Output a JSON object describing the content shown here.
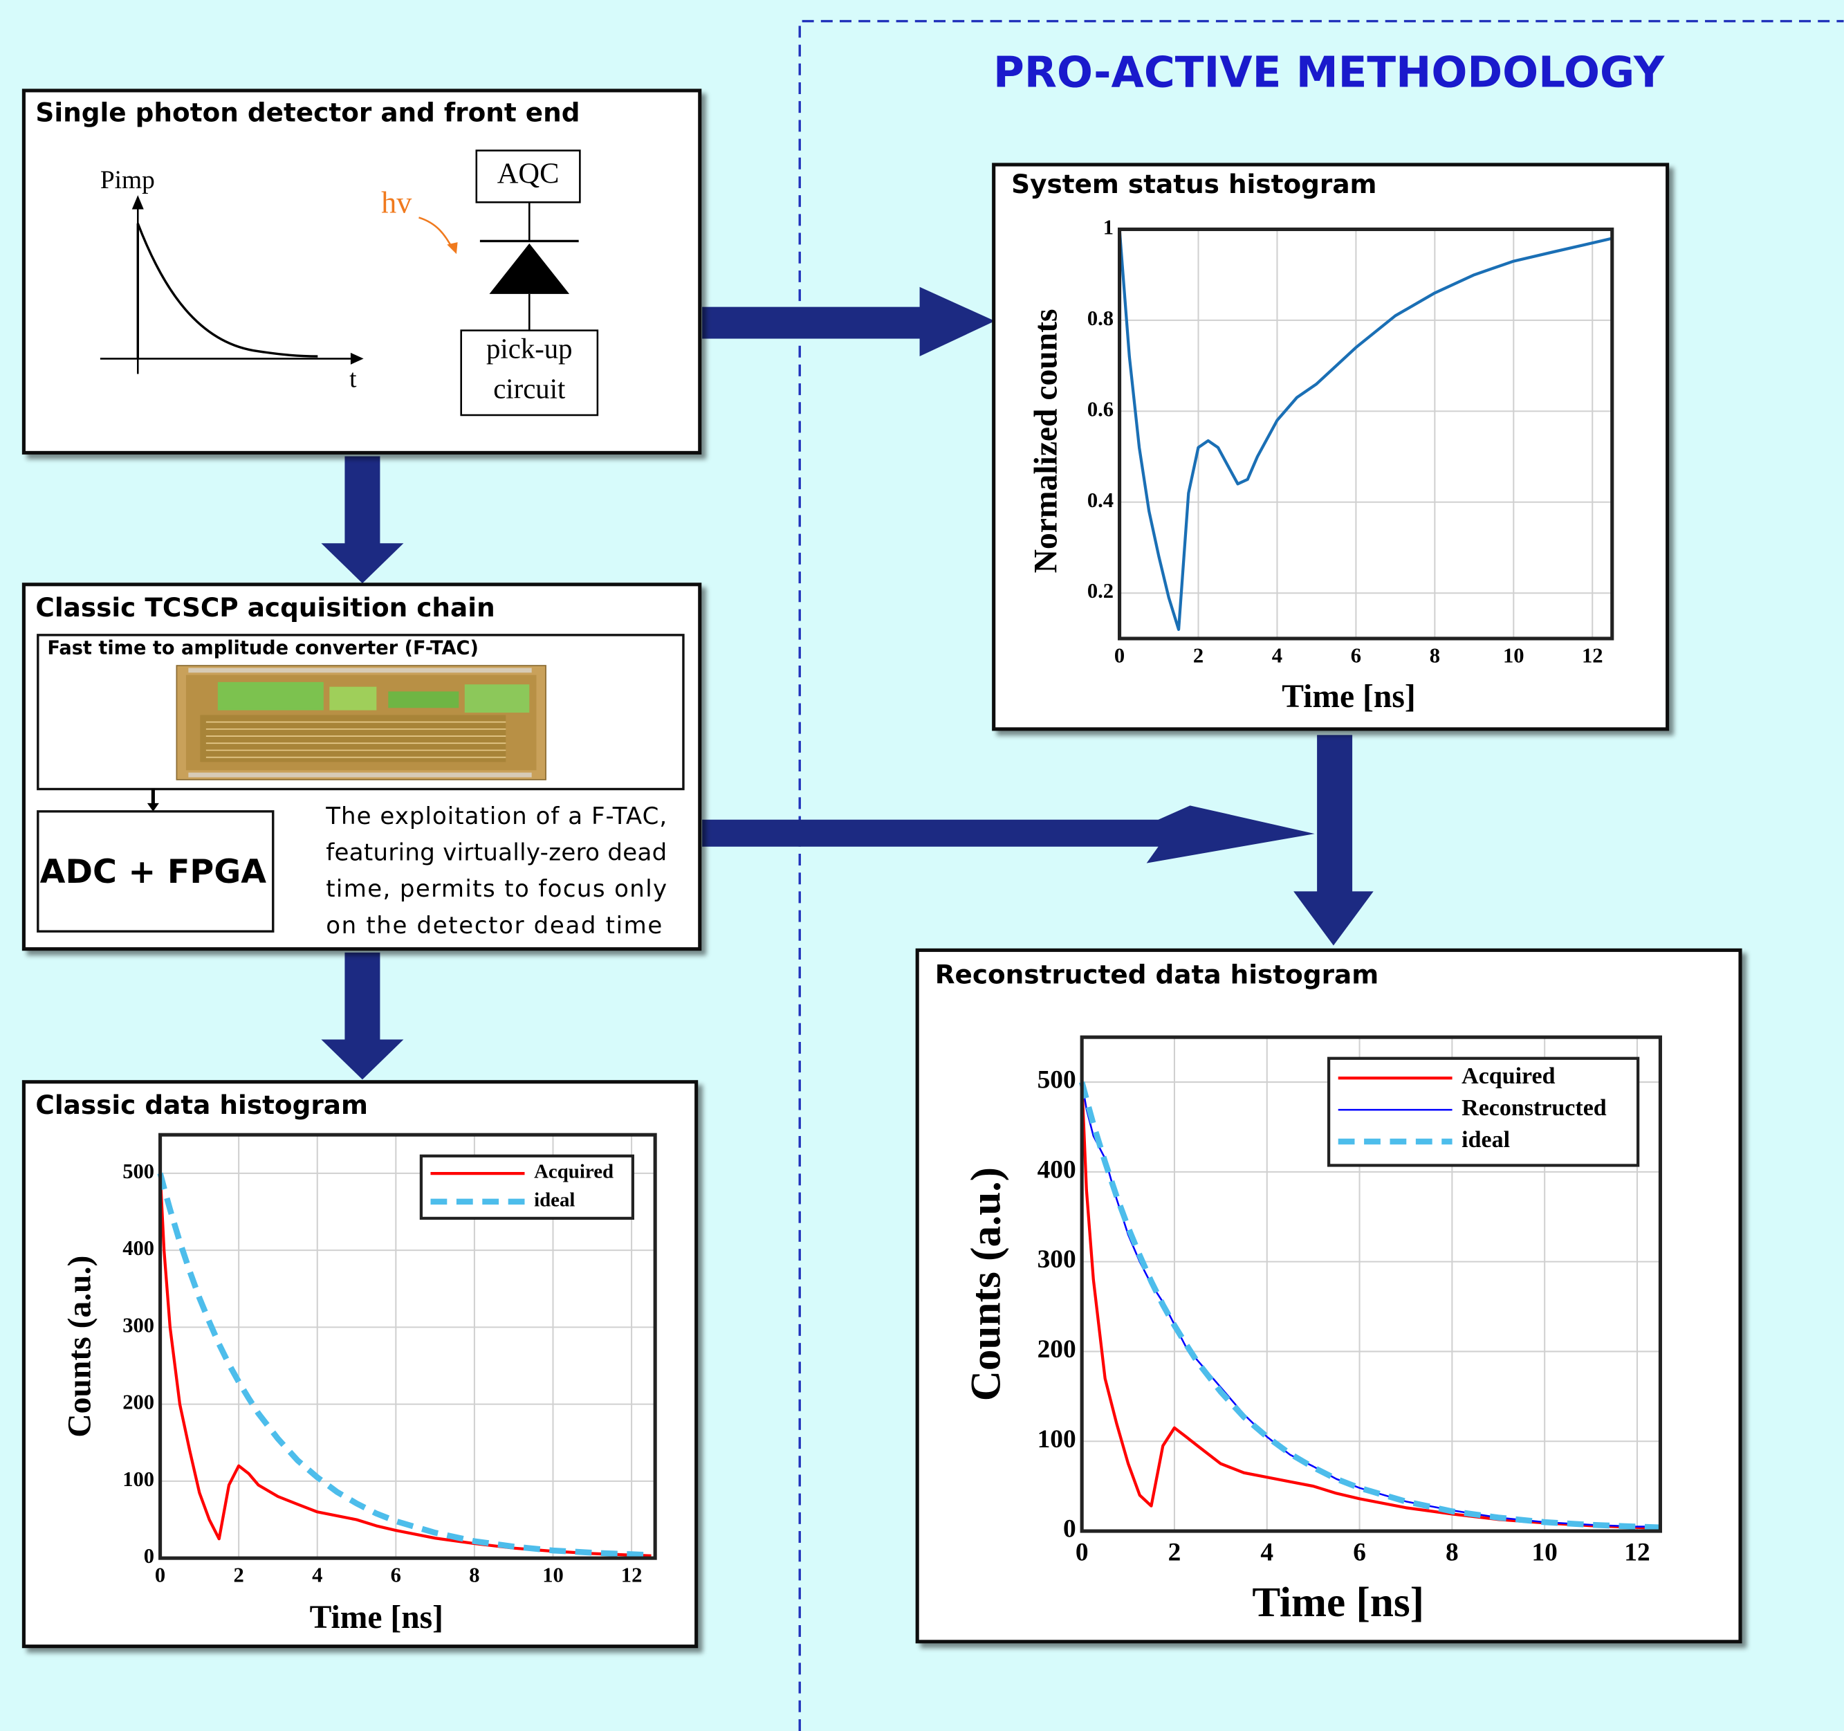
{
  "title": "PRO-ACTIVE METHODOLOGY",
  "detector": {
    "title": "Single photon detector and front end",
    "pulse_y_label": "Pimp",
    "pulse_x_label": "t",
    "photon_label": "hv",
    "quench_label": "AQC",
    "pickup_label": [
      "pick-up",
      "circuit"
    ]
  },
  "acquisition": {
    "title": "Classic TCSCP acquisition chain",
    "ftac_title": "Fast time to amplitude converter (F-TAC)",
    "adc_label": "ADC + FPGA",
    "description_lines": [
      "The exploitation of a F-TAC,",
      "featuring virtually-zero dead",
      "time, permits to focus only",
      "on the detector dead time"
    ]
  },
  "chart_data": [
    {
      "type": "line",
      "title": "Classic data histogram",
      "x_label": "Time [ns]",
      "y_label": "Counts (a.u.)",
      "x": [
        0,
        0.1,
        0.25,
        0.5,
        0.75,
        1,
        1.25,
        1.5,
        1.75,
        2,
        2.25,
        2.5,
        3,
        3.5,
        4,
        4.5,
        5,
        5.5,
        6,
        7,
        8,
        9,
        10,
        11,
        12,
        12.5
      ],
      "series": [
        {
          "name": "Acquired",
          "color": "#ff0000",
          "style": "solid",
          "values": [
            500,
            400,
            300,
            200,
            140,
            85,
            50,
            25,
            95,
            120,
            110,
            95,
            80,
            70,
            60,
            55,
            50,
            42,
            36,
            26,
            19,
            13,
            9,
            6,
            4,
            3
          ]
        },
        {
          "name": "ideal",
          "color": "#4dbdeb",
          "style": "dashed",
          "values": [
            500,
            481,
            453,
            411,
            373,
            338,
            307,
            278,
            252,
            229,
            208,
            188,
            155,
            127,
            105,
            86,
            71,
            58,
            48,
            33,
            22,
            15,
            10,
            7,
            5,
            4
          ]
        }
      ],
      "xlim": [
        0,
        12.6
      ],
      "ylim": [
        0,
        550
      ],
      "xticks": [
        0,
        2,
        4,
        6,
        8,
        10,
        12
      ],
      "yticks": [
        0,
        100,
        200,
        300,
        400,
        500
      ],
      "grid": true,
      "legend": "upper right"
    },
    {
      "type": "line",
      "title": "System status histogram",
      "x_label": "Time [ns]",
      "y_label": "Normalized counts",
      "x": [
        0,
        0.25,
        0.5,
        0.75,
        1,
        1.25,
        1.5,
        1.75,
        2,
        2.25,
        2.5,
        2.75,
        3,
        3.25,
        3.5,
        4,
        4.5,
        5,
        5.5,
        6,
        7,
        8,
        9,
        10,
        11,
        12,
        12.5
      ],
      "series": [
        {
          "color": "#1a6fb5",
          "style": "solid",
          "values": [
            1,
            0.72,
            0.52,
            0.38,
            0.28,
            0.19,
            0.12,
            0.42,
            0.52,
            0.535,
            0.52,
            0.48,
            0.44,
            0.45,
            0.5,
            0.58,
            0.63,
            0.66,
            0.7,
            0.74,
            0.81,
            0.86,
            0.9,
            0.93,
            0.95,
            0.97,
            0.98
          ]
        }
      ],
      "xlim": [
        0,
        12.5
      ],
      "ylim": [
        0.1,
        1
      ],
      "xticks": [
        0,
        2,
        4,
        6,
        8,
        10,
        12
      ],
      "yticks": [
        0.2,
        0.4,
        0.6,
        0.8,
        1
      ],
      "grid": true
    },
    {
      "type": "line",
      "title": "Reconstructed data histogram",
      "x_label": "Time [ns]",
      "y_label": "Counts (a.u.)",
      "x": [
        0,
        0.1,
        0.25,
        0.5,
        0.75,
        1,
        1.25,
        1.5,
        1.75,
        2,
        2.25,
        2.5,
        3,
        3.5,
        4,
        4.5,
        5,
        5.5,
        6,
        7,
        8,
        9,
        10,
        11,
        12,
        12.5
      ],
      "series": [
        {
          "name": "Acquired",
          "color": "#ff0000",
          "style": "solid",
          "values": [
            500,
            380,
            280,
            170,
            120,
            75,
            40,
            28,
            95,
            115,
            105,
            95,
            75,
            65,
            60,
            55,
            50,
            42,
            36,
            26,
            19,
            13,
            9,
            6,
            4,
            3
          ]
        },
        {
          "name": "Reconstructed",
          "color": "#0000ff",
          "style": "thin",
          "values": [
            500,
            470,
            440,
            415,
            370,
            330,
            300,
            275,
            255,
            230,
            205,
            190,
            160,
            130,
            105,
            85,
            72,
            58,
            48,
            33,
            23,
            15,
            10,
            7,
            5,
            5
          ]
        },
        {
          "name": "ideal",
          "color": "#4dbdeb",
          "style": "dashed",
          "values": [
            500,
            481,
            453,
            411,
            373,
            338,
            307,
            278,
            252,
            229,
            208,
            188,
            155,
            127,
            105,
            86,
            71,
            58,
            48,
            33,
            22,
            15,
            10,
            7,
            5,
            4
          ]
        }
      ],
      "xlim": [
        0,
        12.5
      ],
      "ylim": [
        0,
        550
      ],
      "xticks": [
        0,
        2,
        4,
        6,
        8,
        10,
        12
      ],
      "yticks": [
        0,
        100,
        200,
        300,
        400,
        500
      ],
      "grid": true,
      "legend": "upper right"
    }
  ]
}
